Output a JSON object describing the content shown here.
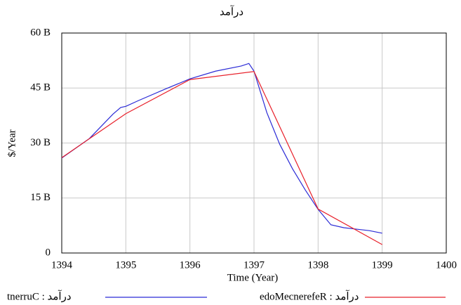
{
  "chart_data": {
    "type": "line",
    "title": "درآمد",
    "xlabel": "Time (Year)",
    "ylabel": "$/Year",
    "xlim": [
      1394,
      1400
    ],
    "xticks": [
      1394,
      1395,
      1396,
      1397,
      1398,
      1399,
      1400
    ],
    "ylim": [
      0,
      60
    ],
    "yticks": [
      0,
      {
        "value": 15,
        "label": "15 B"
      },
      {
        "value": 30,
        "label": "30 B"
      },
      {
        "value": 45,
        "label": "45 B"
      },
      {
        "value": 60,
        "label": "60 B"
      }
    ],
    "grid": true,
    "series": [
      {
        "name": "tnerruC : درآمد",
        "color": "#2b2bd6",
        "x": [
          1394,
          1394.43,
          1394.8,
          1394.92,
          1395,
          1395.2,
          1395.6,
          1396,
          1396.4,
          1396.8,
          1396.92,
          1397,
          1397.2,
          1397.4,
          1397.6,
          1397.8,
          1398,
          1398.2,
          1398.4,
          1398.8,
          1399
        ],
        "values": [
          25.9,
          31.2,
          37.9,
          39.7,
          40.0,
          41.6,
          44.6,
          47.5,
          49.6,
          51.0,
          51.7,
          49.6,
          38.3,
          29.7,
          23.0,
          17.2,
          11.9,
          7.7,
          6.9,
          6.1,
          5.4
        ]
      },
      {
        "name": "edoMecnerefeR : درآمد",
        "color": "#e8202a",
        "x": [
          1394,
          1395,
          1396,
          1397,
          1398,
          1399
        ],
        "values": [
          26.0,
          38.0,
          47.3,
          49.5,
          12.0,
          2.3
        ]
      }
    ]
  }
}
